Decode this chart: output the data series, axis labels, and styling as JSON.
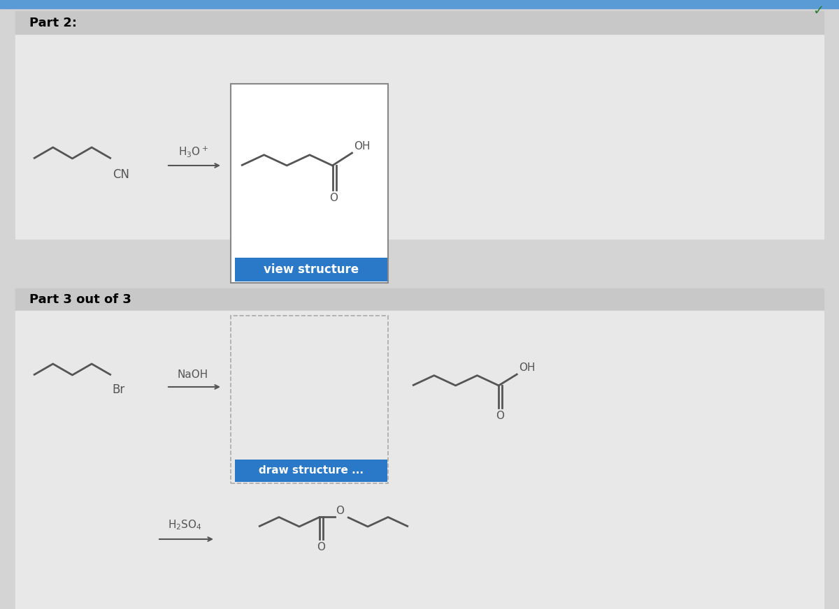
{
  "bg_color": "#d4d4d4",
  "panel_bg": "#e8e8e8",
  "header_bg": "#c8c8c8",
  "white": "#ffffff",
  "blue_btn": "#2979c8",
  "text_color": "#000000",
  "blue_btn_text": "#ffffff",
  "part2_label": "Part 2:",
  "part3_label": "Part 3 out of 3",
  "btn1_text": "view structure",
  "btn2_text": "draw structure ...",
  "checkmark_color": "#2e7d32",
  "dashed_border": "#aaaaaa",
  "solid_border": "#888888",
  "mol_color": "#555555",
  "mol_lw": 2.0
}
